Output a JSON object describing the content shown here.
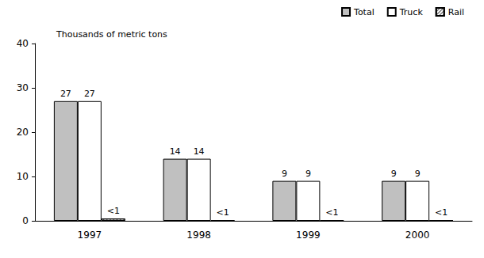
{
  "chart_data": {
    "type": "bar",
    "y_label": "Thousands of metric tons",
    "categories": [
      "1997",
      "1998",
      "1999",
      "2000"
    ],
    "series": [
      {
        "name": "Total",
        "color": "#c0c0c0",
        "values": [
          27,
          14,
          9,
          9
        ]
      },
      {
        "name": "Truck",
        "color": "#ffffff",
        "values": [
          27,
          14,
          9,
          9
        ]
      },
      {
        "name": "Rail",
        "color": "#ffffff",
        "values": [
          0.5,
          0.1,
          0.1,
          0.1
        ],
        "value_labels": [
          "<1",
          "<1",
          "<1",
          "<1"
        ]
      }
    ],
    "ylim": [
      0,
      40
    ],
    "yticks": [
      0,
      10,
      20,
      30,
      40
    ],
    "grid": false,
    "legend": "top-right",
    "data_labels": true
  }
}
